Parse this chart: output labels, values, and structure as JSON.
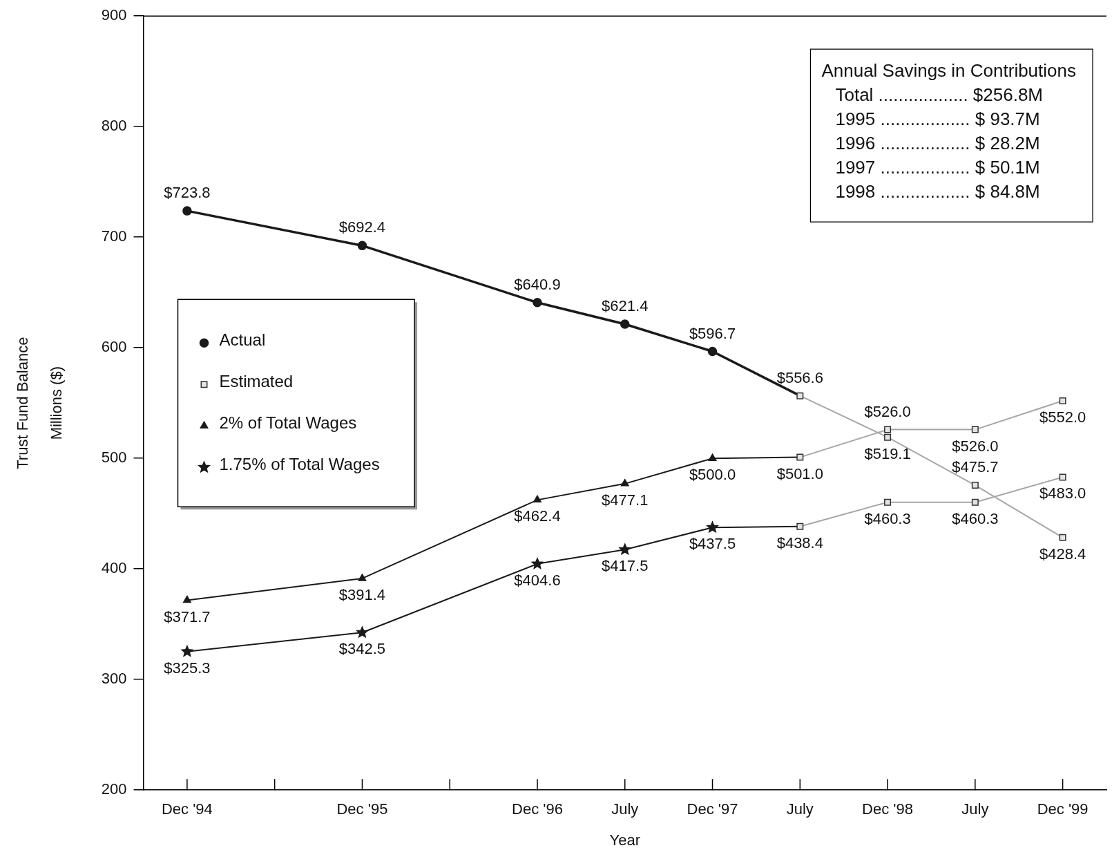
{
  "chart_data": {
    "type": "line",
    "xlabel": "Year",
    "ylabel": "Trust Fund Balance\nMillions ($)",
    "categories": [
      "Dec '94",
      null,
      "Dec '95",
      null,
      "Dec '96",
      "July",
      "Dec '97",
      "July",
      "Dec '98",
      "July",
      "Dec '99"
    ],
    "ylim": [
      200,
      900
    ],
    "yticks": [
      200,
      300,
      400,
      500,
      600,
      700,
      800,
      900
    ],
    "grid": false,
    "legend": "center left",
    "series": [
      {
        "name": "Actual",
        "color": "#1a1a1a",
        "marker": "circle",
        "values": [
          723.8,
          null,
          692.4,
          null,
          640.9,
          621.4,
          596.7,
          556.6,
          null,
          null,
          null
        ],
        "value_labels": [
          "$723.8",
          null,
          "$692.4",
          null,
          "$640.9",
          "$621.4",
          "$596.7",
          "$556.6",
          null,
          null,
          null
        ]
      },
      {
        "name": "Estimated",
        "color": "#a6a6a6",
        "marker": "square",
        "values": [
          null,
          null,
          null,
          null,
          null,
          null,
          null,
          556.6,
          519.1,
          475.7,
          428.4
        ],
        "value_labels": [
          null,
          null,
          null,
          null,
          null,
          null,
          null,
          null,
          "$519.1",
          "$475.7",
          "$428.4"
        ]
      },
      {
        "name": "2% of Total Wages",
        "color": "#1a1a1a",
        "marker": "triangle",
        "values": [
          371.7,
          null,
          391.4,
          null,
          462.4,
          477.1,
          500.0,
          501.0,
          null,
          null,
          null
        ],
        "value_labels": [
          "$371.7",
          null,
          "$391.4",
          null,
          "$462.4",
          "$477.1",
          "$500.0",
          "$501.0",
          null,
          null,
          null
        ]
      },
      {
        "name": "1.75% of Total Wages",
        "color": "#1a1a1a",
        "marker": "star",
        "values": [
          325.3,
          null,
          342.5,
          null,
          404.6,
          417.5,
          437.5,
          438.4,
          null,
          null,
          null
        ],
        "value_labels": [
          "$325.3",
          null,
          "$342.5",
          null,
          "$404.6",
          "$417.5",
          "$437.5",
          "$438.4",
          null,
          null,
          null
        ]
      },
      {
        "color": "#a6a6a6",
        "marker": "square",
        "values": [
          null,
          null,
          null,
          null,
          null,
          null,
          null,
          501.0,
          526.0,
          526.0,
          552.0
        ],
        "value_labels": [
          null,
          null,
          null,
          null,
          null,
          null,
          null,
          null,
          "$526.0",
          "$526.0",
          "$552.0"
        ]
      },
      {
        "color": "#a6a6a6",
        "marker": "square",
        "values": [
          null,
          null,
          null,
          null,
          null,
          null,
          null,
          438.4,
          460.3,
          460.3,
          483.0
        ],
        "value_labels": [
          null,
          null,
          null,
          null,
          null,
          null,
          null,
          null,
          "$460.3",
          "$460.3",
          "$483.0"
        ]
      }
    ],
    "annotations": [
      "Annual Savings in Contributions",
      "Total .................. $256.8M",
      "1995 .................. $ 93.7M",
      "1996 .................. $ 28.2M",
      "1997 .................. $ 50.1M",
      "1998 .................. $ 84.8M"
    ]
  }
}
